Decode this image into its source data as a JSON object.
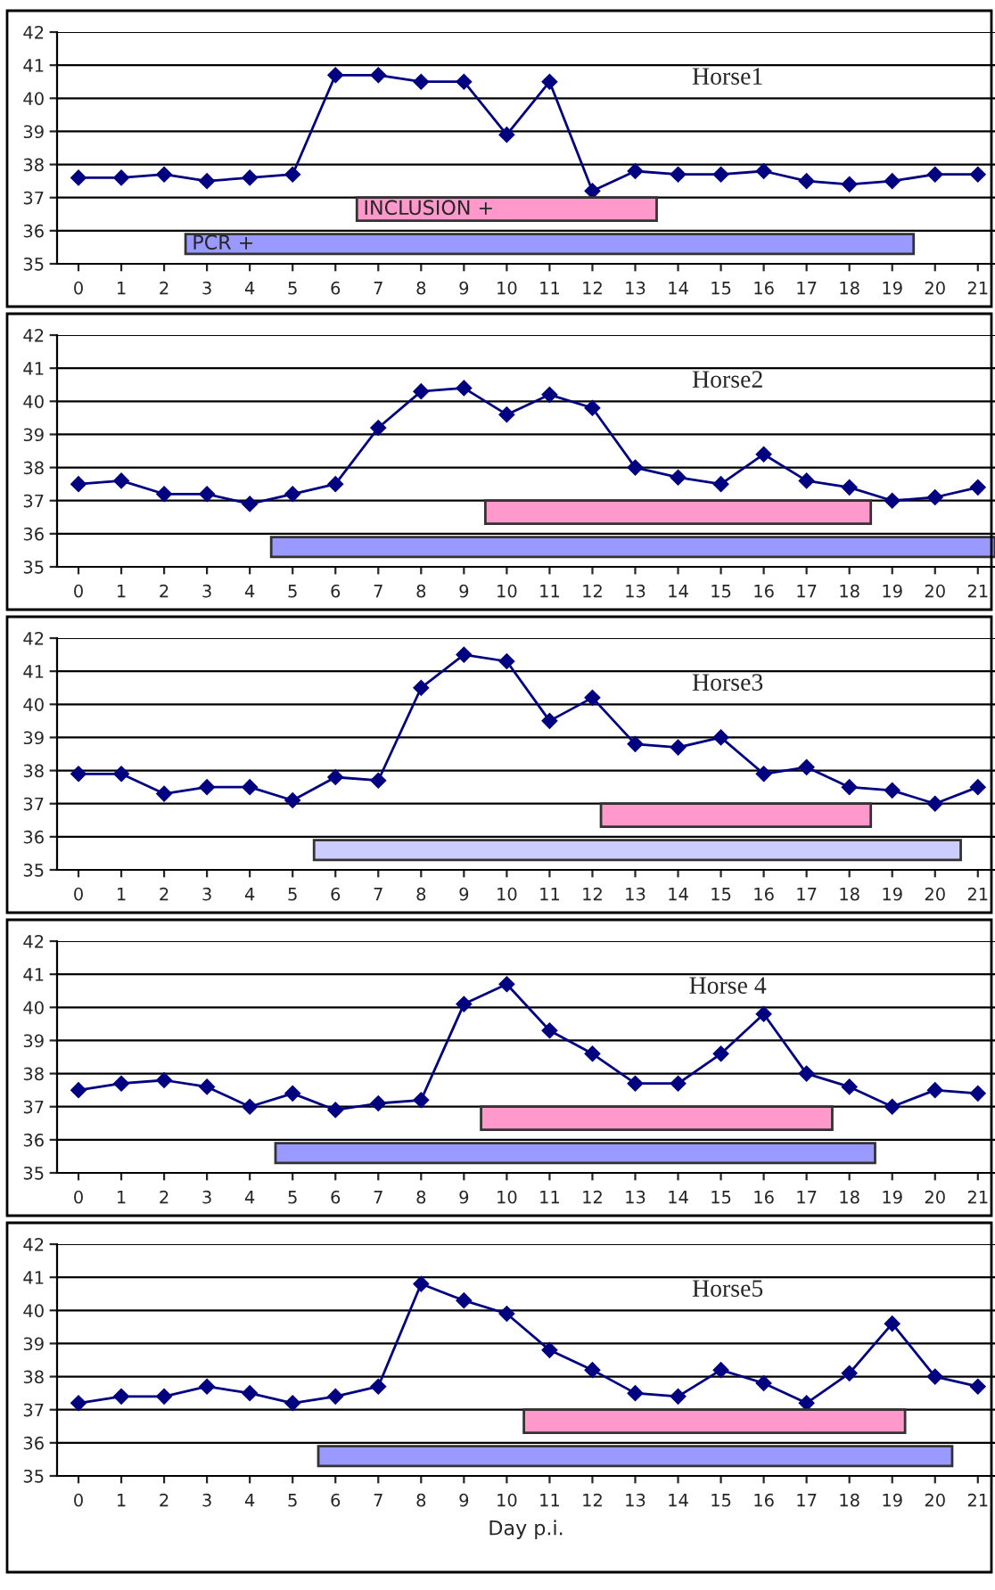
{
  "chart_data": [
    {
      "type": "line",
      "title": "Horse1",
      "x": [
        0,
        1,
        2,
        3,
        4,
        5,
        6,
        7,
        8,
        9,
        10,
        11,
        12,
        13,
        14,
        15,
        16,
        17,
        18,
        19,
        20,
        21
      ],
      "xlim": [
        -0.5,
        21.4
      ],
      "xticks": [
        0,
        1,
        2,
        3,
        4,
        5,
        6,
        7,
        8,
        9,
        10,
        11,
        12,
        13,
        14,
        15,
        16,
        17,
        18,
        19,
        20,
        21
      ],
      "ylim": [
        35,
        42
      ],
      "yticks": [
        35,
        36,
        37,
        38,
        39,
        40,
        41,
        42
      ],
      "grid": "y",
      "marker": "diamond",
      "line_style": "solid",
      "series": [
        {
          "color": "#000080",
          "values": [
            37.6,
            37.6,
            37.7,
            37.5,
            37.6,
            37.7,
            40.7,
            40.7,
            40.5,
            40.5,
            38.9,
            40.5,
            37.2,
            37.8,
            37.7,
            37.7,
            37.8,
            37.5,
            37.4,
            37.5,
            37.7,
            37.7
          ]
        }
      ],
      "bands": [
        {
          "axis": "x",
          "from": 6.5,
          "to": 13.5,
          "label": "INCLUSION +",
          "color": "#ff99cc"
        },
        {
          "axis": "x",
          "from": 2.5,
          "to": 19.5,
          "label": "PCR +",
          "color": "#9999ff"
        }
      ]
    },
    {
      "type": "line",
      "title": "Horse2",
      "x": [
        0,
        1,
        2,
        3,
        4,
        5,
        6,
        7,
        8,
        9,
        10,
        11,
        12,
        13,
        14,
        15,
        16,
        17,
        18,
        19,
        20,
        21
      ],
      "xlim": [
        -0.5,
        21.4
      ],
      "xticks": [
        0,
        1,
        2,
        3,
        4,
        5,
        6,
        7,
        8,
        9,
        10,
        11,
        12,
        13,
        14,
        15,
        16,
        17,
        18,
        19,
        20,
        21
      ],
      "ylim": [
        35,
        42
      ],
      "yticks": [
        35,
        36,
        37,
        38,
        39,
        40,
        41,
        42
      ],
      "grid": "y",
      "marker": "diamond",
      "line_style": "solid",
      "series": [
        {
          "color": "#000080",
          "values": [
            37.5,
            37.6,
            37.2,
            37.2,
            36.9,
            37.2,
            37.5,
            39.2,
            40.3,
            40.4,
            39.6,
            40.2,
            39.8,
            38.0,
            37.7,
            37.5,
            38.4,
            37.6,
            37.4,
            37.0,
            37.1,
            37.4
          ]
        }
      ],
      "bands": [
        {
          "axis": "x",
          "from": 9.5,
          "to": 18.5,
          "color": "#ff99cc"
        },
        {
          "axis": "x",
          "from": 4.5,
          "to": 21.4,
          "color": "#9999ff"
        }
      ]
    },
    {
      "type": "line",
      "title": "Horse3",
      "x": [
        0,
        1,
        2,
        3,
        4,
        5,
        6,
        7,
        8,
        9,
        10,
        11,
        12,
        13,
        14,
        15,
        16,
        17,
        18,
        19,
        20,
        21
      ],
      "xlim": [
        -0.5,
        21.4
      ],
      "xticks": [
        0,
        1,
        2,
        3,
        4,
        5,
        6,
        7,
        8,
        9,
        10,
        11,
        12,
        13,
        14,
        15,
        16,
        17,
        18,
        19,
        20,
        21
      ],
      "ylim": [
        35,
        42
      ],
      "yticks": [
        35,
        36,
        37,
        38,
        39,
        40,
        41,
        42
      ],
      "grid": "y",
      "marker": "diamond",
      "line_style": "solid",
      "series": [
        {
          "color": "#000080",
          "values": [
            37.9,
            37.9,
            37.3,
            37.5,
            37.5,
            37.1,
            37.8,
            37.7,
            40.5,
            41.5,
            41.3,
            39.5,
            40.2,
            38.8,
            38.7,
            39.0,
            37.9,
            38.1,
            37.5,
            37.4,
            37.0,
            37.5
          ]
        }
      ],
      "bands": [
        {
          "axis": "x",
          "from": 12.2,
          "to": 18.5,
          "color": "#ff99cc"
        },
        {
          "axis": "x",
          "from": 5.5,
          "to": 20.6,
          "color": "#ccccff"
        }
      ]
    },
    {
      "type": "line",
      "title": "Horse 4",
      "x": [
        0,
        1,
        2,
        3,
        4,
        5,
        6,
        7,
        8,
        9,
        10,
        11,
        12,
        13,
        14,
        15,
        16,
        17,
        18,
        19,
        20,
        21
      ],
      "xlim": [
        -0.5,
        21.4
      ],
      "xticks": [
        0,
        1,
        2,
        3,
        4,
        5,
        6,
        7,
        8,
        9,
        10,
        11,
        12,
        13,
        14,
        15,
        16,
        17,
        18,
        19,
        20,
        21
      ],
      "ylim": [
        35,
        42
      ],
      "yticks": [
        35,
        36,
        37,
        38,
        39,
        40,
        41,
        42
      ],
      "grid": "y",
      "marker": "diamond",
      "line_style": "solid",
      "series": [
        {
          "color": "#000080",
          "values": [
            37.5,
            37.7,
            37.8,
            37.6,
            37.0,
            37.4,
            36.9,
            37.1,
            37.2,
            40.1,
            40.7,
            39.3,
            38.6,
            37.7,
            37.7,
            38.6,
            39.8,
            38.0,
            37.6,
            37.0,
            37.5,
            37.4
          ]
        }
      ],
      "bands": [
        {
          "axis": "x",
          "from": 9.4,
          "to": 17.6,
          "color": "#ff99cc"
        },
        {
          "axis": "x",
          "from": 4.6,
          "to": 18.6,
          "color": "#9999ff"
        }
      ]
    },
    {
      "type": "line",
      "title": "Horse5",
      "xlabel": "Day p.i.",
      "x": [
        0,
        1,
        2,
        3,
        4,
        5,
        6,
        7,
        8,
        9,
        10,
        11,
        12,
        13,
        14,
        15,
        16,
        17,
        18,
        19,
        20,
        21
      ],
      "xlim": [
        -0.5,
        21.4
      ],
      "xticks": [
        0,
        1,
        2,
        3,
        4,
        5,
        6,
        7,
        8,
        9,
        10,
        11,
        12,
        13,
        14,
        15,
        16,
        17,
        18,
        19,
        20,
        21
      ],
      "ylim": [
        35,
        42
      ],
      "yticks": [
        35,
        36,
        37,
        38,
        39,
        40,
        41,
        42
      ],
      "grid": "y",
      "marker": "diamond",
      "line_style": "solid",
      "series": [
        {
          "color": "#000080",
          "values": [
            37.2,
            37.4,
            37.4,
            37.7,
            37.5,
            37.2,
            37.4,
            37.7,
            40.8,
            40.3,
            39.9,
            38.8,
            38.2,
            37.5,
            37.4,
            38.2,
            37.8,
            37.2,
            38.1,
            39.6,
            38.0,
            37.7
          ]
        }
      ],
      "bands": [
        {
          "axis": "x",
          "from": 10.4,
          "to": 19.3,
          "color": "#ff99cc"
        },
        {
          "axis": "x",
          "from": 5.6,
          "to": 20.4,
          "color": "#9999ff"
        }
      ]
    }
  ]
}
